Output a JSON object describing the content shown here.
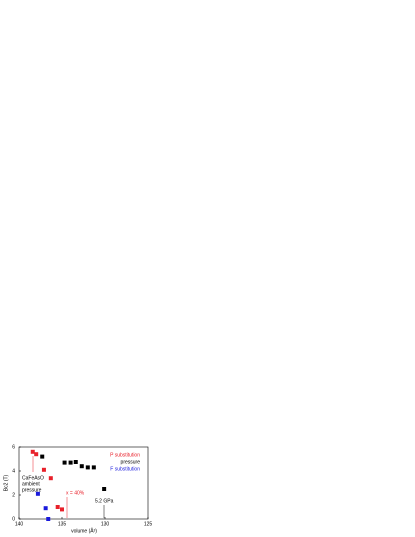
{
  "chart_data": {
    "type": "scatter",
    "x_label": "volume (Å³)",
    "y_label": "Bc2 (T)",
    "xlim": [
      140,
      125
    ],
    "xticks": [
      140,
      135,
      130,
      125
    ],
    "ylim": [
      0,
      6
    ],
    "yticks": [
      0,
      2,
      4,
      6
    ],
    "legend_position": "upper right",
    "series": [
      {
        "name": "P substitution",
        "color": "#e8202a",
        "x": [
          138.4,
          138.0,
          137.1,
          136.3,
          135.5,
          135.0
        ],
        "values": [
          5.6,
          5.4,
          4.1,
          3.4,
          1.0,
          0.8
        ]
      },
      {
        "name": "pressure",
        "color": "#000000",
        "x": [
          137.3,
          134.7,
          134.0,
          133.4,
          132.7,
          132.0,
          131.3,
          130.1
        ],
        "values": [
          5.2,
          4.7,
          4.7,
          4.75,
          4.4,
          4.3,
          4.3,
          2.5
        ]
      },
      {
        "name": "F substitution",
        "color": "#1a1adc",
        "x": [
          137.8,
          136.9,
          136.6
        ],
        "values": [
          2.1,
          0.9,
          0
        ]
      }
    ],
    "annotations": [
      "CaFeAsO",
      "ambient",
      "pressure",
      "x = 40%",
      "5.2 GPa"
    ]
  }
}
